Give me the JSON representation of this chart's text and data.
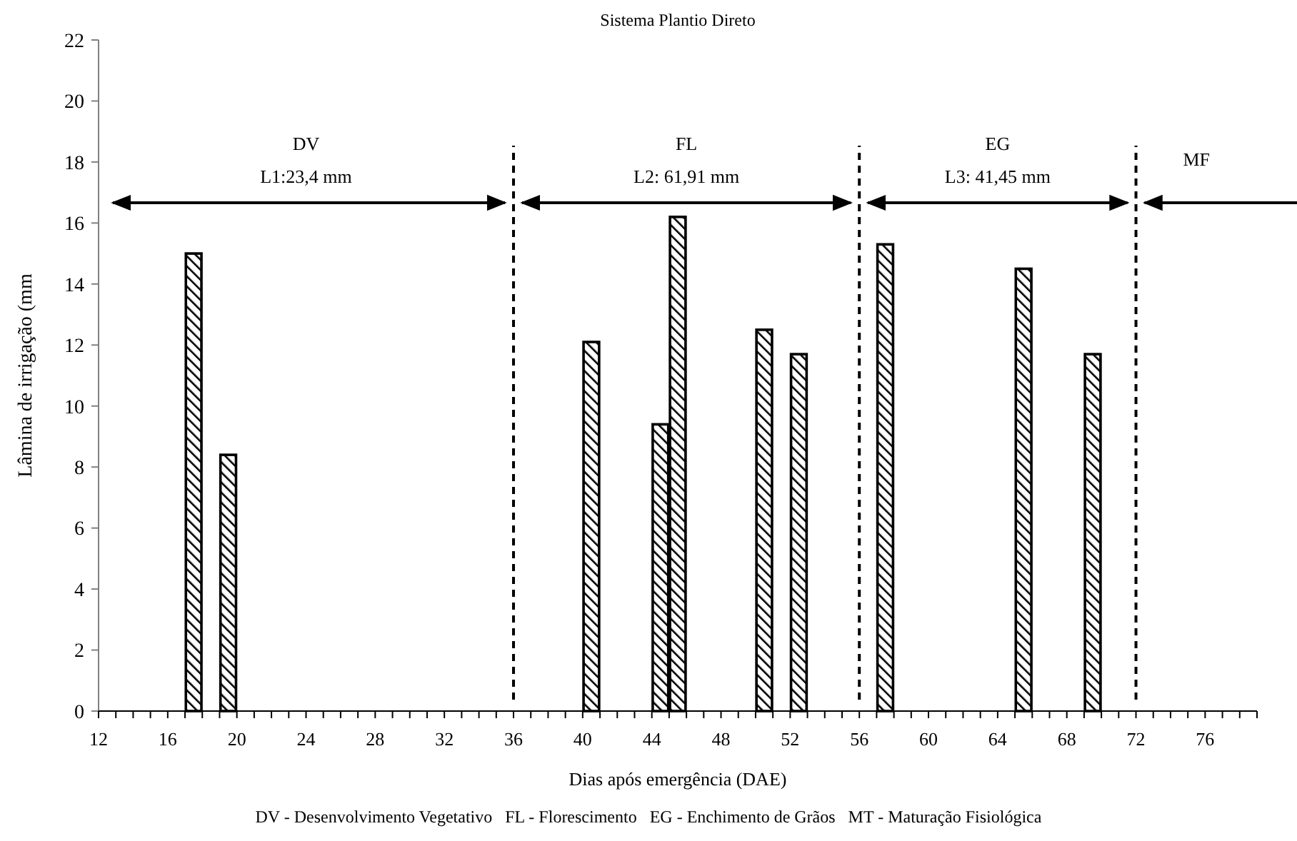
{
  "chart_data": {
    "type": "bar",
    "title": "Sistema Plantio Direto",
    "xlabel": "Dias após emergência (DAE)",
    "ylabel": "Lâmina de irrigação (mm",
    "x": [
      17.5,
      19.5,
      40.5,
      44.5,
      45.5,
      50.5,
      52.5,
      57.5,
      65.5,
      69.5
    ],
    "values": [
      15.0,
      8.4,
      12.1,
      9.4,
      16.2,
      12.5,
      11.7,
      15.3,
      14.5,
      11.7
    ],
    "color": "#000000",
    "xlim": [
      12,
      79
    ],
    "xticks": [
      12,
      {
        "value": 13,
        "label": null
      },
      {
        "value": 14,
        "label": null
      },
      {
        "value": 15,
        "label": null
      },
      16,
      {
        "value": 17,
        "label": null
      },
      {
        "value": 18,
        "label": null
      },
      {
        "value": 19,
        "label": null
      },
      20,
      {
        "value": 21,
        "label": null
      },
      {
        "value": 22,
        "label": null
      },
      {
        "value": 23,
        "label": null
      },
      24,
      {
        "value": 25,
        "label": null
      },
      {
        "value": 26,
        "label": null
      },
      {
        "value": 27,
        "label": null
      },
      28,
      {
        "value": 29,
        "label": null
      },
      {
        "value": 30,
        "label": null
      },
      {
        "value": 31,
        "label": null
      },
      32,
      {
        "value": 33,
        "label": null
      },
      {
        "value": 34,
        "label": null
      },
      {
        "value": 35,
        "label": null
      },
      36,
      {
        "value": 37,
        "label": null
      },
      {
        "value": 38,
        "label": null
      },
      {
        "value": 39,
        "label": null
      },
      40,
      {
        "value": 41,
        "label": null
      },
      {
        "value": 42,
        "label": null
      },
      {
        "value": 43,
        "label": null
      },
      44,
      {
        "value": 45,
        "label": null
      },
      {
        "value": 46,
        "label": null
      },
      {
        "value": 47,
        "label": null
      },
      48,
      {
        "value": 49,
        "label": null
      },
      {
        "value": 50,
        "label": null
      },
      {
        "value": 51,
        "label": null
      },
      52,
      {
        "value": 53,
        "label": null
      },
      {
        "value": 54,
        "label": null
      },
      {
        "value": 55,
        "label": null
      },
      56,
      {
        "value": 57,
        "label": null
      },
      {
        "value": 58,
        "label": null
      },
      {
        "value": 59,
        "label": null
      },
      60,
      {
        "value": 61,
        "label": null
      },
      {
        "value": 62,
        "label": null
      },
      {
        "value": 63,
        "label": null
      },
      64,
      {
        "value": 65,
        "label": null
      },
      {
        "value": 66,
        "label": null
      },
      {
        "value": 67,
        "label": null
      },
      68,
      {
        "value": 69,
        "label": null
      },
      {
        "value": 70,
        "label": null
      },
      {
        "value": 71,
        "label": null
      },
      72,
      {
        "value": 73,
        "label": null
      },
      {
        "value": 74,
        "label": null
      },
      {
        "value": 75,
        "label": null
      },
      76,
      {
        "value": 77,
        "label": null
      },
      {
        "value": 78,
        "label": null
      },
      {
        "value": 79,
        "label": null
      }
    ],
    "ylim": [
      0,
      22
    ],
    "yticks": [
      0,
      2,
      4,
      6,
      8,
      10,
      12,
      14,
      16,
      18,
      20,
      22
    ],
    "ref_lines": [
      {
        "axis": "x",
        "value": 36,
        "line_style": "dashed",
        "color": "#000000"
      },
      {
        "axis": "x",
        "value": 56,
        "line_style": "dashed",
        "color": "#000000"
      },
      {
        "axis": "x",
        "value": 72,
        "line_style": "dashed",
        "color": "#000000"
      }
    ],
    "annotations": [
      "DV",
      "L1:23,4 mm",
      "FL",
      "L2: 61,91 mm",
      "EG",
      "L3: 41,45 mm",
      "MF",
      "DV - Desenvolvimento Vegetativo   FL - Florescimento   EG - Enchimento de Grãos   MT - Maturação Fisiológica"
    ],
    "grid": false
  }
}
